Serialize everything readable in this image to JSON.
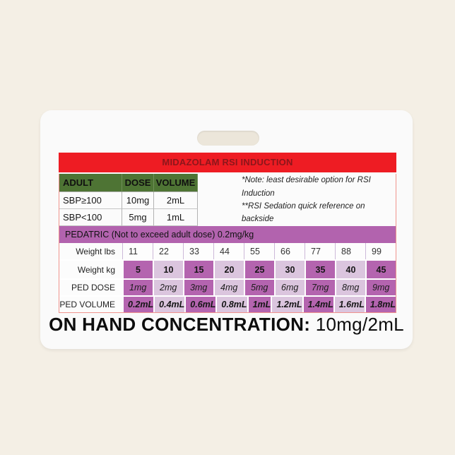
{
  "badge": {
    "title": "MIDAZOLAM RSI INDUCTION",
    "adult_table": {
      "columns": [
        "ADULT",
        "DOSE",
        "VOLUME"
      ],
      "rows": [
        {
          "label": "SBP≥100",
          "dose": "10mg",
          "volume": "2mL"
        },
        {
          "label": "SBP<100",
          "dose": "5mg",
          "volume": "1mL"
        }
      ]
    },
    "notes": {
      "line1": "*Note: least desirable option for RSI Induction",
      "line2": "**RSI Sedation quick reference on backside"
    },
    "pediatric": {
      "header": "PEDATRIC (Not to exceed adult dose) 0.2mg/kg",
      "rows": [
        {
          "label": "Weight lbs",
          "values": [
            "11",
            "22",
            "33",
            "44",
            "55",
            "66",
            "77",
            "88",
            "99"
          ]
        },
        {
          "label": "Weight kg",
          "values": [
            "5",
            "10",
            "15",
            "20",
            "25",
            "30",
            "35",
            "40",
            "45"
          ]
        },
        {
          "label": "PED DOSE",
          "values": [
            "1mg",
            "2mg",
            "3mg",
            "4mg",
            "5mg",
            "6mg",
            "7mg",
            "8mg",
            "9mg"
          ]
        },
        {
          "label": "PED VOLUME",
          "values": [
            "0.2mL",
            "0.4mL",
            "0.6mL",
            "0.8mL",
            "1mL",
            "1.2mL",
            "1.4mL",
            "1.6mL",
            "1.8mL"
          ]
        }
      ]
    },
    "footer": {
      "label": "ON HAND CONCENTRATION:",
      "value": "10mg/2mL"
    }
  },
  "colors": {
    "page_background": "#f4efe5",
    "card_background": "#fafafa",
    "title_band": "#ee1c23",
    "title_text": "#8c161b",
    "adult_header_green": "#4e7434",
    "pediatric_purple": "#b263ae",
    "cell_dark_purple": "#b464af",
    "cell_light_purple": "#dbc5de",
    "table_border_pink": "#f0948e"
  }
}
